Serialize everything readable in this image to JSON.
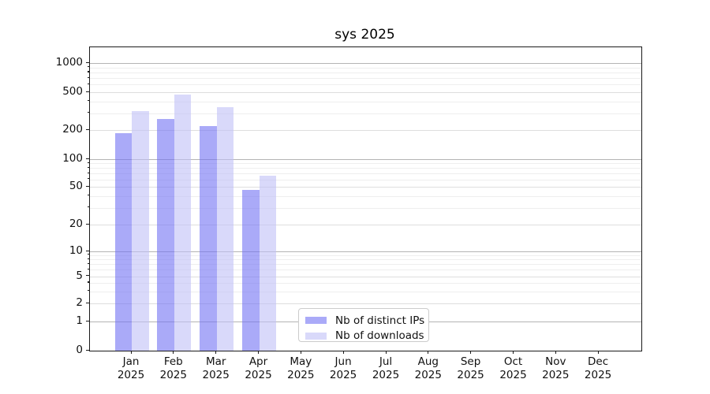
{
  "title": "sys 2025",
  "legend": {
    "items": [
      {
        "label": "Nb of distinct IPs",
        "color": "#aaaaf8"
      },
      {
        "label": "Nb of downloads",
        "color": "#d9d9fa"
      }
    ]
  },
  "axes": {
    "y_tick_labels": [
      "0",
      "1",
      "2",
      "5",
      "10",
      "20",
      "50",
      "100",
      "200",
      "500",
      "1000"
    ],
    "x_months": [
      "Jan",
      "Feb",
      "Mar",
      "Apr",
      "May",
      "Jun",
      "Jul",
      "Aug",
      "Sep",
      "Oct",
      "Nov",
      "Dec"
    ],
    "x_year": "2025"
  },
  "colors": {
    "bar_ips_rgba": "rgba(113,113,243,0.6)",
    "bar_downloads_rgba": "rgba(192,192,247,0.6)",
    "grid_major": "#b4b4b4",
    "grid_labeled": "#dedede",
    "grid_minor": "#eeeeee",
    "spine": "#1a1a1a"
  },
  "chart_data": {
    "type": "bar",
    "title": "sys 2025",
    "categories": [
      "Jan 2025",
      "Feb 2025",
      "Mar 2025",
      "Apr 2025",
      "May 2025",
      "Jun 2025",
      "Jul 2025",
      "Aug 2025",
      "Sep 2025",
      "Oct 2025",
      "Nov 2025",
      "Dec 2025"
    ],
    "series": [
      {
        "name": "Nb of distinct IPs",
        "color": "#aaaaf8",
        "values": [
          185,
          260,
          220,
          46,
          0,
          0,
          0,
          0,
          0,
          0,
          0,
          0
        ]
      },
      {
        "name": "Nb of downloads",
        "color": "#d9d9fa",
        "values": [
          315,
          470,
          350,
          66,
          0,
          0,
          0,
          0,
          0,
          0,
          0,
          0
        ]
      }
    ],
    "xlabel": "",
    "ylabel": "",
    "yscale": "asinh-like (0,1,2,5,10,20,50,100,200,500,1000)",
    "y_ticks": [
      0,
      1,
      2,
      5,
      10,
      20,
      50,
      100,
      200,
      500,
      1000
    ],
    "y_minor_gridlines": [
      3,
      4,
      6,
      7,
      8,
      9,
      30,
      40,
      60,
      70,
      80,
      90,
      300,
      400,
      600,
      700,
      800,
      900
    ],
    "ylim": [
      0,
      1450
    ],
    "grid": "horizontal major + minor",
    "legend_position": "lower center"
  }
}
